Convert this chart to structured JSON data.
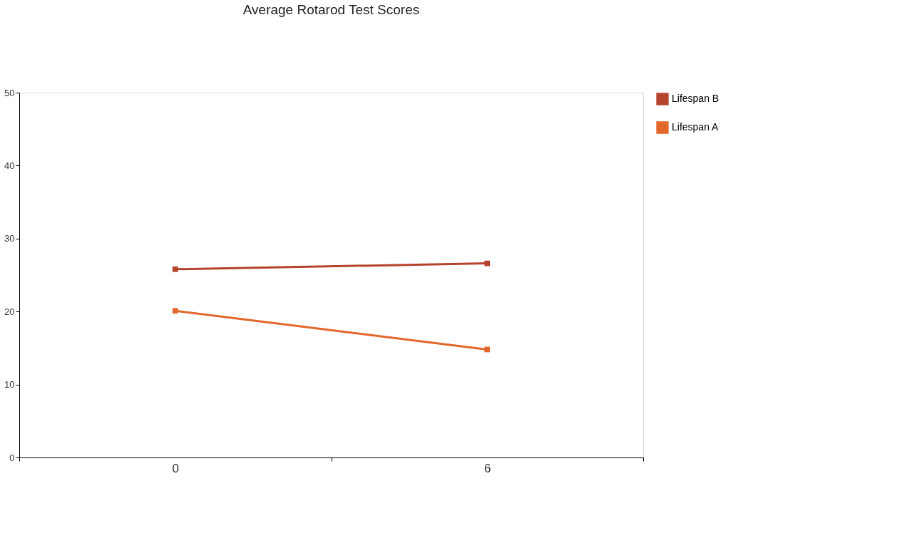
{
  "chart_data": {
    "type": "line",
    "title": "Average Rotarod Test Scores",
    "categories": [
      "0",
      "6"
    ],
    "series": [
      {
        "name": "Lifespan B",
        "color": "#b5432e",
        "values": [
          25.8,
          26.6
        ]
      },
      {
        "name": "Lifespan A",
        "color": "#e2672a",
        "values": [
          20.1,
          14.8
        ]
      }
    ],
    "ylim": [
      0,
      50
    ],
    "yticks": [
      0,
      10,
      20,
      30,
      40,
      50
    ],
    "grid": false,
    "legend": "right",
    "marker": "square",
    "line_style": "solid"
  }
}
